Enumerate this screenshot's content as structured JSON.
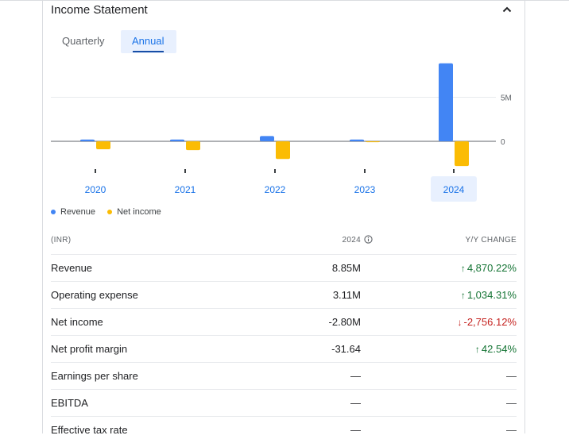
{
  "card": {
    "title": "Income Statement",
    "collapse_icon": "chevron-up-icon",
    "tabs": [
      {
        "label": "Quarterly",
        "selected": false
      },
      {
        "label": "Annual",
        "selected": true
      }
    ]
  },
  "chart_data": {
    "type": "bar",
    "categories": [
      "2020",
      "2021",
      "2022",
      "2023",
      "2024"
    ],
    "selected_category": "2024",
    "series": [
      {
        "name": "Revenue",
        "color": "#4285f4",
        "values": [
          0.2,
          0.2,
          0.6,
          0.2,
          8.85
        ]
      },
      {
        "name": "Net income",
        "color": "#fbbc04",
        "values": [
          -0.9,
          -1.0,
          -2.0,
          -0.1,
          -2.8
        ]
      }
    ],
    "ytick_values": [
      0,
      5
    ],
    "ytick_labels": [
      "0",
      "5M"
    ],
    "ylim": [
      -3.5,
      9.3
    ],
    "legend": "bottom-left"
  },
  "table": {
    "headers": {
      "metric": "(INR)",
      "year": "2024",
      "change": "Y/Y CHANGE"
    },
    "info_icon": "info-icon",
    "rows": [
      {
        "metric": "Revenue",
        "value": "8.85M",
        "change": "4,870.22%",
        "dir": "up"
      },
      {
        "metric": "Operating expense",
        "value": "3.11M",
        "change": "1,034.31%",
        "dir": "up"
      },
      {
        "metric": "Net income",
        "value": "-2.80M",
        "change": "-2,756.12%",
        "dir": "down"
      },
      {
        "metric": "Net profit margin",
        "value": "-31.64",
        "change": "42.54%",
        "dir": "up"
      },
      {
        "metric": "Earnings per share",
        "value": "—",
        "change": "—",
        "dir": "none"
      },
      {
        "metric": "EBITDA",
        "value": "—",
        "change": "—",
        "dir": "none"
      },
      {
        "metric": "Effective tax rate",
        "value": "—",
        "change": "—",
        "dir": "none"
      }
    ]
  }
}
